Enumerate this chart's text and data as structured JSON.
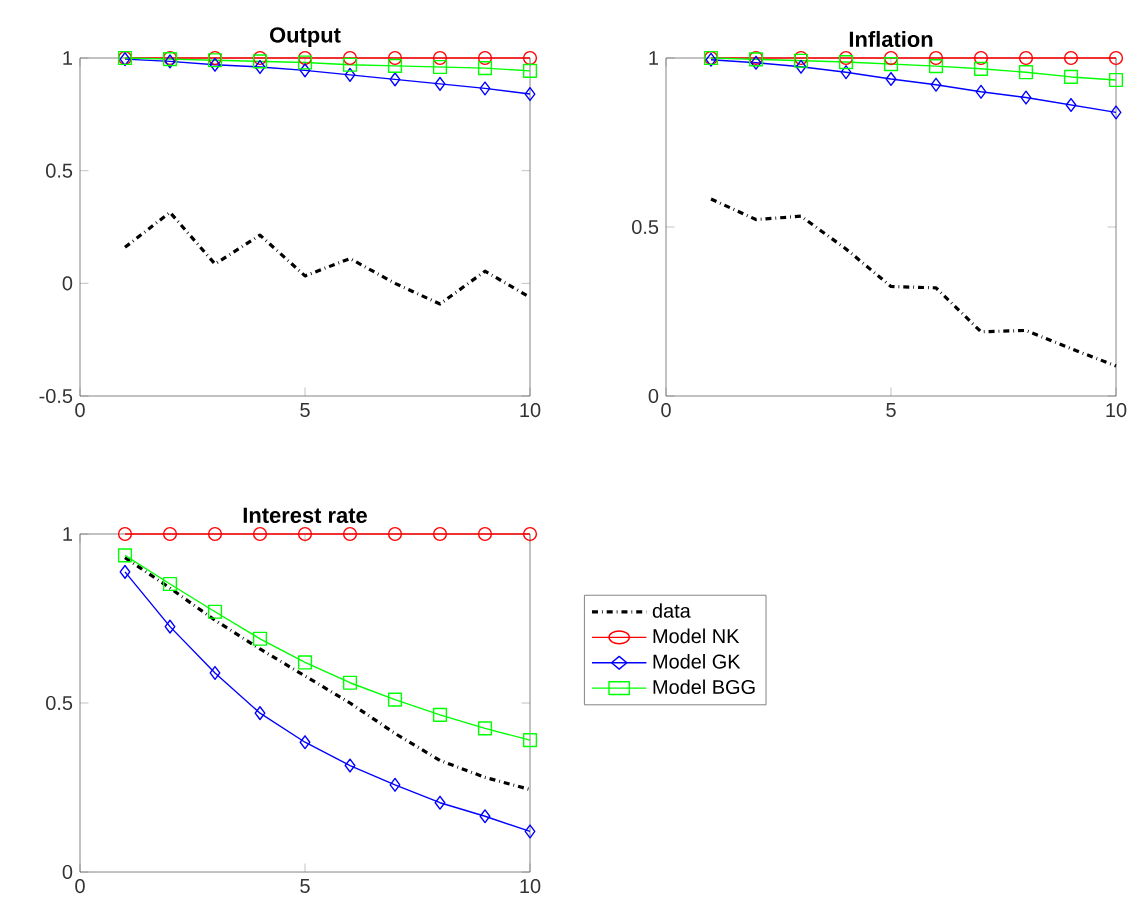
{
  "chart_data": [
    {
      "type": "line",
      "title": "Output",
      "x": [
        1,
        2,
        3,
        4,
        5,
        6,
        7,
        8,
        9,
        10
      ],
      "xlim": [
        0,
        10
      ],
      "xticks": [
        0,
        5,
        10
      ],
      "ylim": [
        -0.5,
        1
      ],
      "yticks": [
        -0.5,
        0,
        0.5,
        1
      ],
      "series": [
        {
          "color": "#000000",
          "line_style": "dashdot",
          "marker": "none",
          "values": [
            0.16,
            0.315,
            0.086,
            0.214,
            0.033,
            0.11,
            0.0,
            -0.092,
            0.054,
            -0.062
          ]
        },
        {
          "color": "#ff0000",
          "line_style": "solid",
          "marker": "circle",
          "values": [
            1,
            1,
            1,
            1,
            1,
            1,
            1,
            1,
            1,
            1
          ]
        },
        {
          "color": "#0000ff",
          "line_style": "solid",
          "marker": "diamond",
          "values": [
            0.995,
            0.985,
            0.97,
            0.96,
            0.945,
            0.925,
            0.905,
            0.885,
            0.865,
            0.84
          ]
        },
        {
          "color": "#00ff00",
          "line_style": "solid",
          "marker": "square",
          "values": [
            1.0,
            0.995,
            0.99,
            0.985,
            0.98,
            0.97,
            0.965,
            0.96,
            0.955,
            0.943
          ]
        }
      ]
    },
    {
      "type": "line",
      "title": "Inflation",
      "x": [
        1,
        2,
        3,
        4,
        5,
        6,
        7,
        8,
        9,
        10
      ],
      "xlim": [
        0,
        10
      ],
      "xticks": [
        0,
        5,
        10
      ],
      "ylim": [
        0,
        1
      ],
      "yticks": [
        0,
        0.5,
        1
      ],
      "series": [
        {
          "color": "#000000",
          "line_style": "dashdot",
          "marker": "none",
          "values": [
            0.583,
            0.522,
            0.532,
            0.435,
            0.324,
            0.32,
            0.19,
            0.194,
            0.14,
            0.089
          ]
        },
        {
          "color": "#ff0000",
          "line_style": "solid",
          "marker": "circle",
          "values": [
            1,
            1,
            1,
            1,
            1,
            1,
            1,
            1,
            1,
            1
          ]
        },
        {
          "color": "#0000ff",
          "line_style": "solid",
          "marker": "diamond",
          "values": [
            0.995,
            0.986,
            0.974,
            0.958,
            0.938,
            0.921,
            0.9,
            0.883,
            0.861,
            0.839
          ]
        },
        {
          "color": "#00ff00",
          "line_style": "solid",
          "marker": "square",
          "values": [
            1.0,
            0.996,
            0.992,
            0.988,
            0.982,
            0.976,
            0.968,
            0.958,
            0.944,
            0.935
          ]
        }
      ]
    },
    {
      "type": "line",
      "title": "Interest rate",
      "x": [
        1,
        2,
        3,
        4,
        5,
        6,
        7,
        8,
        9,
        10
      ],
      "xlim": [
        0,
        10
      ],
      "xticks": [
        0,
        5,
        10
      ],
      "ylim": [
        0,
        1
      ],
      "yticks": [
        0,
        0.5,
        1
      ],
      "legend": "right",
      "series": [
        {
          "name": "data",
          "color": "#000000",
          "line_style": "dashdot",
          "marker": "none",
          "values": [
            0.93,
            0.84,
            0.745,
            0.66,
            0.58,
            0.5,
            0.41,
            0.33,
            0.28,
            0.244
          ]
        },
        {
          "name": "Model NK",
          "color": "#ff0000",
          "line_style": "solid",
          "marker": "circle",
          "values": [
            1,
            1,
            1,
            1,
            1,
            1,
            1,
            1,
            1,
            1
          ]
        },
        {
          "name": "Model GK",
          "color": "#0000ff",
          "line_style": "solid",
          "marker": "diamond",
          "values": [
            0.888,
            0.726,
            0.589,
            0.47,
            0.384,
            0.315,
            0.258,
            0.205,
            0.165,
            0.12
          ]
        },
        {
          "name": "Model BGG",
          "color": "#00ff00",
          "line_style": "solid",
          "marker": "square",
          "values": [
            0.937,
            0.852,
            0.77,
            0.69,
            0.62,
            0.56,
            0.51,
            0.465,
            0.425,
            0.39
          ]
        }
      ]
    }
  ]
}
